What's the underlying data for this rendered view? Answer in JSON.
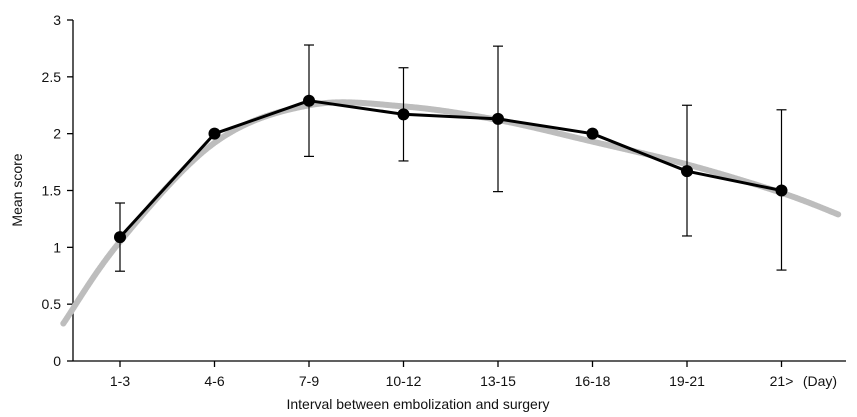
{
  "chart_data": {
    "type": "line",
    "xlabel": "Interval between embolization and surgery",
    "ylabel": "Mean score",
    "x_unit": "(Day)",
    "categories": [
      "1-3",
      "4-6",
      "7-9",
      "10-12",
      "13-15",
      "16-18",
      "19-21",
      "21>"
    ],
    "ylim": [
      0,
      3
    ],
    "y_ticks": [
      "0",
      "0.5",
      "1",
      "1.5",
      "2",
      "2.5",
      "3"
    ],
    "grid": false,
    "series": [
      {
        "values": [
          1.09,
          2.0,
          2.29,
          2.17,
          2.13,
          2.0,
          1.67,
          1.5
        ],
        "error_low": [
          0.79,
          2.0,
          1.8,
          1.76,
          1.49,
          2.0,
          1.1,
          0.8
        ],
        "error_high": [
          1.39,
          2.0,
          2.78,
          2.58,
          2.77,
          2.0,
          2.25,
          2.21
        ],
        "color": "#000000"
      }
    ],
    "trend": {
      "fit": "quadratic",
      "x": [
        -0.6,
        0.0,
        1.0,
        2.0,
        3.0,
        4.0,
        5.0,
        6.0,
        7.0,
        7.6
      ],
      "y": [
        0.33,
        1.05,
        1.92,
        2.25,
        2.24,
        2.12,
        1.93,
        1.73,
        1.48,
        1.29
      ],
      "color": "#bdbdbd"
    }
  }
}
